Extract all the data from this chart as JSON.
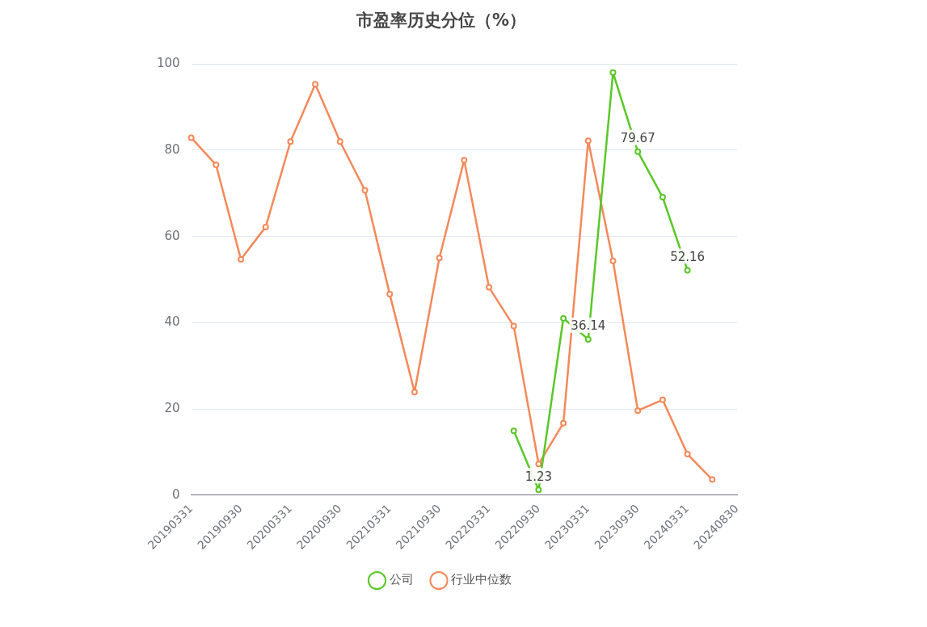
{
  "chart_data": {
    "type": "line",
    "title": "市盈率历史分位（%）",
    "categories": [
      "20190331",
      null,
      "20190930",
      null,
      "20200331",
      null,
      "20200930",
      null,
      "20210331",
      null,
      "20210930",
      null,
      "20220331",
      null,
      "20220930",
      null,
      "20230331",
      null,
      "20230930",
      null,
      "20240331",
      null,
      "20240830"
    ],
    "series": [
      {
        "name": "公司",
        "color": "#5ac728",
        "values": [
          null,
          null,
          null,
          null,
          null,
          null,
          null,
          null,
          null,
          null,
          null,
          null,
          null,
          14.9,
          1.23,
          41,
          36.14,
          98,
          79.67,
          69.1,
          52.16,
          null,
          null
        ],
        "value_labels": [
          null,
          null,
          null,
          null,
          null,
          null,
          null,
          null,
          null,
          null,
          null,
          null,
          null,
          null,
          "1.23",
          null,
          "36.14",
          null,
          "79.67",
          null,
          "52.16",
          null,
          null
        ]
      },
      {
        "name": "行业中位数",
        "color": "#f4895a",
        "values": [
          82.9,
          76.6,
          54.7,
          62.2,
          82,
          95.3,
          82,
          70.7,
          46.6,
          23.9,
          55,
          77.7,
          48.2,
          39.2,
          7.2,
          16.7,
          82.2,
          54.3,
          19.6,
          22.1,
          9.5,
          3.6,
          null
        ]
      }
    ],
    "ylim": [
      0,
      100
    ],
    "yticks": [
      0,
      20,
      40,
      60,
      80,
      100
    ],
    "grid": "y",
    "legend": "bottom",
    "marker": "circle",
    "line_style": "solid"
  }
}
